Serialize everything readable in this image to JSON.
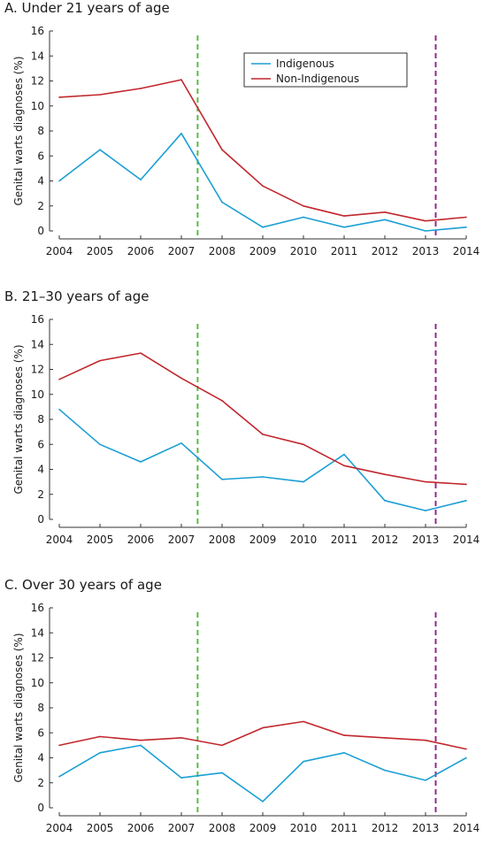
{
  "chart_data": [
    {
      "type": "line",
      "title": "A. Under 21 years of age",
      "ylabel": "Genital warts diagnoses (%)",
      "xlabel": "",
      "x": [
        2004,
        2005,
        2006,
        2007,
        2008,
        2009,
        2010,
        2011,
        2012,
        2013,
        2014
      ],
      "xlim": [
        2004,
        2014
      ],
      "ylim": [
        0,
        16
      ],
      "yticks": [
        0,
        2,
        4,
        6,
        8,
        10,
        12,
        14,
        16
      ],
      "legend": "top-right",
      "series": [
        {
          "name": "Indigenous",
          "color": "#1a9fd4",
          "values": [
            4.0,
            6.5,
            4.1,
            7.8,
            2.3,
            0.3,
            1.1,
            0.3,
            0.9,
            0.0,
            0.3
          ]
        },
        {
          "name": "Non-Indigenous",
          "color": "#c1272d",
          "values": [
            10.7,
            10.9,
            11.4,
            12.1,
            6.5,
            3.6,
            2.0,
            1.2,
            1.5,
            0.8,
            1.1
          ]
        }
      ],
      "reference_lines": [
        {
          "x": 2007.4,
          "color": "#5cb946"
        },
        {
          "x": 2013.25,
          "color": "#92278f"
        }
      ]
    },
    {
      "type": "line",
      "title": "B. 21–30 years of age",
      "ylabel": "Genital warts diagnoses (%)",
      "xlabel": "",
      "x": [
        2004,
        2005,
        2006,
        2007,
        2008,
        2009,
        2010,
        2011,
        2012,
        2013,
        2014
      ],
      "xlim": [
        2004,
        2014
      ],
      "ylim": [
        0,
        16
      ],
      "yticks": [
        0,
        2,
        4,
        6,
        8,
        10,
        12,
        14,
        16
      ],
      "series": [
        {
          "name": "Indigenous",
          "color": "#1a9fd4",
          "values": [
            8.8,
            6.0,
            4.6,
            6.1,
            3.2,
            3.4,
            3.0,
            5.2,
            1.5,
            0.7,
            1.5
          ]
        },
        {
          "name": "Non-Indigenous",
          "color": "#c1272d",
          "values": [
            11.2,
            12.7,
            13.3,
            11.3,
            9.5,
            6.8,
            6.0,
            4.3,
            3.6,
            3.0,
            2.8
          ]
        }
      ],
      "reference_lines": [
        {
          "x": 2007.4,
          "color": "#5cb946"
        },
        {
          "x": 2013.25,
          "color": "#92278f"
        }
      ]
    },
    {
      "type": "line",
      "title": "C. Over 30 years of age",
      "ylabel": "Genital warts diagnoses (%)",
      "xlabel": "",
      "x": [
        2004,
        2005,
        2006,
        2007,
        2008,
        2009,
        2010,
        2011,
        2012,
        2013,
        2014
      ],
      "xlim": [
        2004,
        2014
      ],
      "ylim": [
        0,
        16
      ],
      "yticks": [
        0,
        2,
        4,
        6,
        8,
        10,
        12,
        14,
        16
      ],
      "series": [
        {
          "name": "Indigenous",
          "color": "#1a9fd4",
          "values": [
            2.5,
            4.4,
            5.0,
            2.4,
            2.8,
            0.5,
            3.7,
            4.4,
            3.0,
            2.2,
            4.0
          ]
        },
        {
          "name": "Non-Indigenous",
          "color": "#c1272d",
          "values": [
            5.0,
            5.7,
            5.4,
            5.6,
            5.0,
            6.4,
            6.9,
            5.8,
            5.6,
            5.4,
            4.7
          ]
        }
      ],
      "reference_lines": [
        {
          "x": 2007.4,
          "color": "#5cb946"
        },
        {
          "x": 2013.25,
          "color": "#92278f"
        }
      ]
    }
  ]
}
